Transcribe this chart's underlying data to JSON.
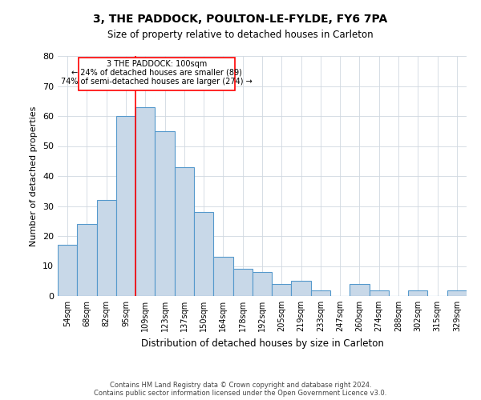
{
  "title": "3, THE PADDOCK, POULTON-LE-FYLDE, FY6 7PA",
  "subtitle": "Size of property relative to detached houses in Carleton",
  "xlabel": "Distribution of detached houses by size in Carleton",
  "ylabel": "Number of detached properties",
  "categories": [
    "54sqm",
    "68sqm",
    "82sqm",
    "95sqm",
    "109sqm",
    "123sqm",
    "137sqm",
    "150sqm",
    "164sqm",
    "178sqm",
    "192sqm",
    "205sqm",
    "219sqm",
    "233sqm",
    "247sqm",
    "260sqm",
    "274sqm",
    "288sqm",
    "302sqm",
    "315sqm",
    "329sqm"
  ],
  "values": [
    17,
    24,
    32,
    60,
    63,
    55,
    43,
    28,
    13,
    9,
    8,
    4,
    5,
    2,
    0,
    4,
    2,
    0,
    2,
    0,
    2
  ],
  "bar_color": "#c8d8e8",
  "bar_edge_color": "#5599cc",
  "bar_width": 1.0,
  "ylim": [
    0,
    80
  ],
  "yticks": [
    0,
    10,
    20,
    30,
    40,
    50,
    60,
    70,
    80
  ],
  "red_line_x": 3.5,
  "annotation_line1": "3 THE PADDOCK: 100sqm",
  "annotation_line2": "← 24% of detached houses are smaller (89)",
  "annotation_line3": "74% of semi-detached houses are larger (274) →",
  "footer_line1": "Contains HM Land Registry data © Crown copyright and database right 2024.",
  "footer_line2": "Contains public sector information licensed under the Open Government Licence v3.0.",
  "background_color": "#ffffff",
  "grid_color": "#d0d8e0"
}
